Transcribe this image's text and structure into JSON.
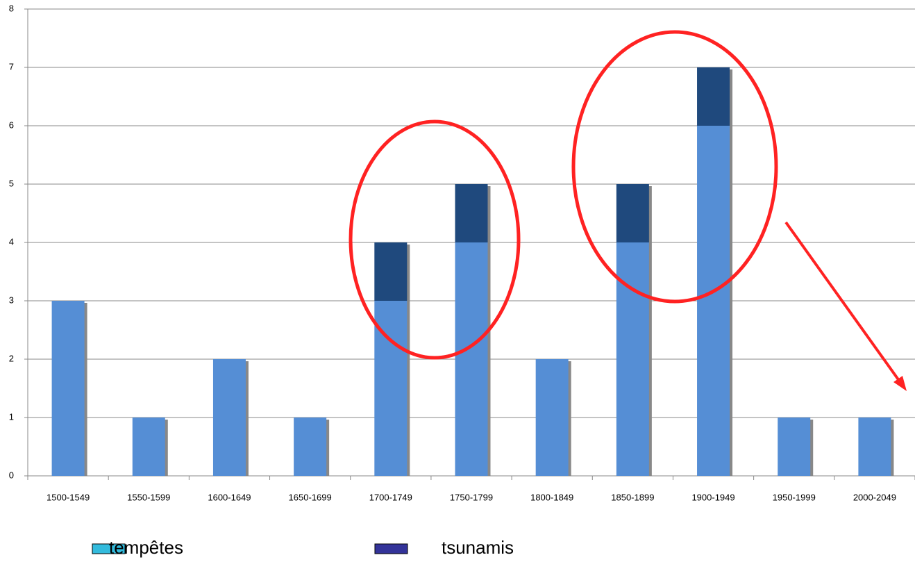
{
  "chart_data": {
    "type": "stacked_bar",
    "categories": [
      "1500-1549",
      "1550-1599",
      "1600-1649",
      "1650-1699",
      "1700-1749",
      "1750-1799",
      "1800-1849",
      "1850-1899",
      "1900-1949",
      "1950-1999",
      "2000-2049"
    ],
    "series": [
      {
        "name": "tempêtes",
        "color": "#558ed5",
        "legend_color": "#33bbdd",
        "values": [
          3,
          1,
          2,
          1,
          3,
          4,
          2,
          4,
          6,
          1,
          1
        ]
      },
      {
        "name": "tsunamis",
        "color": "#1f497d",
        "legend_color": "#333399",
        "values": [
          0,
          0,
          0,
          0,
          1,
          1,
          0,
          1,
          1,
          0,
          0
        ]
      }
    ],
    "ylim": [
      0,
      8
    ],
    "yticks": [
      0,
      1,
      2,
      3,
      4,
      5,
      6,
      7,
      8
    ],
    "grid": true
  }
}
